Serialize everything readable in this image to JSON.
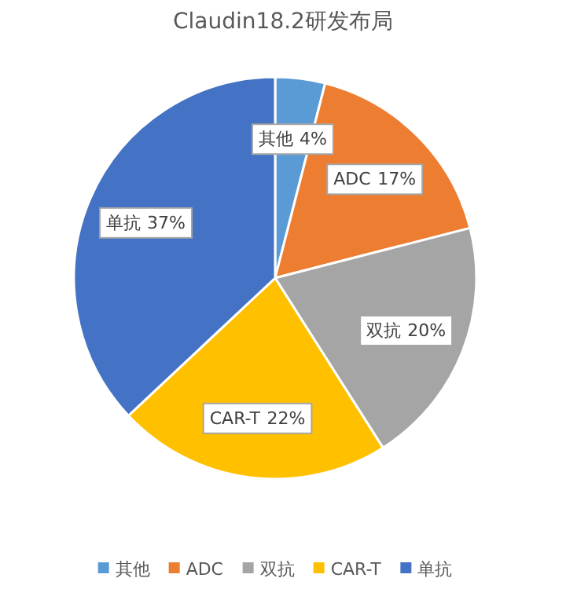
{
  "chart_data": {
    "type": "pie",
    "title": "Claudin18.2研发布局",
    "categories": [
      "其他",
      "ADC",
      "双抗",
      "CAR-T",
      "单抗"
    ],
    "values": [
      4,
      17,
      20,
      22,
      37
    ],
    "colors": [
      "#5b9bd5",
      "#ed7d31",
      "#a5a5a5",
      "#ffc000",
      "#4472c4"
    ],
    "value_labels": [
      "4%",
      "17%",
      "20%",
      "22%",
      "37%"
    ],
    "legend": "bottom"
  }
}
